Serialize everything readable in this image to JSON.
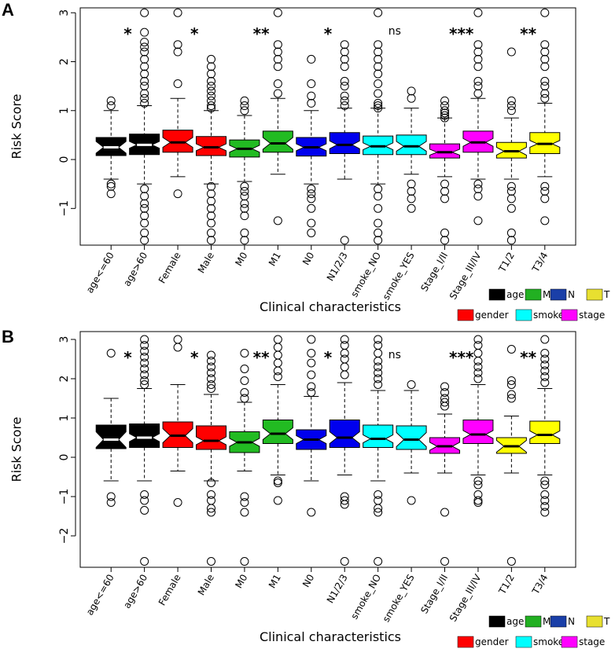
{
  "panel_labels": [
    "A",
    "B"
  ],
  "chart_data": [
    {
      "type": "boxplot",
      "panel": "A",
      "title": "",
      "xlabel": "Clinical characteristics",
      "ylabel": "Risk Score",
      "ylim": [
        -1.75,
        3.1
      ],
      "yticks": [
        -1,
        0,
        1,
        2,
        3
      ],
      "ytick_labels": [
        "−1",
        "0",
        "1",
        "2",
        "3"
      ],
      "notched": true,
      "categories": [
        "age<=60",
        "age>60",
        "Female",
        "Male",
        "M0",
        "M1",
        "N0",
        "N1/2/3",
        "smoke_NO",
        "smoke_YES",
        "Stage_I/II",
        "Stage_III/IV",
        "T1/2",
        "T3/4"
      ],
      "groups": [
        "age",
        "age",
        "gender",
        "gender",
        "M",
        "M",
        "N",
        "N",
        "smoke",
        "smoke",
        "stage",
        "stage",
        "T",
        "T"
      ],
      "boxes": [
        {
          "q1": 0.08,
          "median": 0.25,
          "q3": 0.45,
          "wlo": -0.4,
          "whi": 1.0,
          "notch": 0.12,
          "outliers": [
            1.2,
            1.1,
            -0.5,
            -0.55,
            -0.7
          ]
        },
        {
          "q1": 0.1,
          "median": 0.3,
          "q3": 0.52,
          "wlo": -0.5,
          "whi": 1.1,
          "notch": 0.07,
          "outliers": [
            3.0,
            2.6,
            2.4,
            2.3,
            2.2,
            2.05,
            1.9,
            1.75,
            1.6,
            1.5,
            1.35,
            1.25,
            1.15,
            -0.6,
            -0.75,
            -0.9,
            -1.0,
            -1.15,
            -1.3,
            -1.5,
            -1.65
          ]
        },
        {
          "q1": 0.15,
          "median": 0.35,
          "q3": 0.6,
          "wlo": -0.35,
          "whi": 1.25,
          "notch": 0.1,
          "outliers": [
            3.0,
            2.35,
            2.2,
            1.55,
            -0.7
          ]
        },
        {
          "q1": 0.08,
          "median": 0.25,
          "q3": 0.47,
          "wlo": -0.5,
          "whi": 1.0,
          "notch": 0.07,
          "outliers": [
            2.05,
            1.9,
            1.75,
            1.6,
            1.5,
            1.4,
            1.3,
            1.2,
            1.1,
            1.05,
            -0.55,
            -0.7,
            -0.85,
            -1.0,
            -1.15,
            -1.3,
            -1.5,
            -1.65
          ]
        },
        {
          "q1": 0.05,
          "median": 0.22,
          "q3": 0.4,
          "wlo": -0.45,
          "whi": 0.9,
          "notch": 0.07,
          "outliers": [
            1.2,
            1.1,
            1.0,
            -0.55,
            -0.65,
            -0.75,
            -0.9,
            -1.0,
            -1.15,
            -1.5,
            -1.65
          ]
        },
        {
          "q1": 0.15,
          "median": 0.33,
          "q3": 0.58,
          "wlo": -0.3,
          "whi": 1.25,
          "notch": 0.12,
          "outliers": [
            3.0,
            2.35,
            2.2,
            2.05,
            1.9,
            1.55,
            1.35,
            -1.25
          ]
        },
        {
          "q1": 0.07,
          "median": 0.25,
          "q3": 0.45,
          "wlo": -0.5,
          "whi": 1.0,
          "notch": 0.07,
          "outliers": [
            2.05,
            1.55,
            1.3,
            1.15,
            -0.6,
            -0.7,
            -0.8,
            -1.0,
            -1.3,
            -1.5
          ]
        },
        {
          "q1": 0.12,
          "median": 0.3,
          "q3": 0.55,
          "wlo": -0.4,
          "whi": 1.05,
          "notch": 0.08,
          "outliers": [
            2.35,
            2.2,
            2.05,
            1.9,
            1.6,
            1.5,
            1.3,
            1.2,
            1.1,
            -1.65
          ]
        },
        {
          "q1": 0.1,
          "median": 0.27,
          "q3": 0.48,
          "wlo": -0.5,
          "whi": 1.05,
          "notch": 0.07,
          "outliers": [
            3.0,
            2.35,
            2.2,
            2.05,
            1.9,
            1.75,
            1.55,
            1.35,
            1.15,
            1.1,
            1.05,
            -0.6,
            -0.75,
            -1.0,
            -1.3,
            -1.5,
            -1.65
          ]
        },
        {
          "q1": 0.1,
          "median": 0.27,
          "q3": 0.5,
          "wlo": -0.3,
          "whi": 1.05,
          "notch": 0.1,
          "outliers": [
            1.4,
            1.25,
            -0.5,
            -0.65,
            -0.8,
            -1.0
          ]
        },
        {
          "q1": 0.03,
          "median": 0.15,
          "q3": 0.32,
          "wlo": -0.35,
          "whi": 0.85,
          "notch": 0.06,
          "outliers": [
            1.2,
            1.1,
            1.0,
            0.95,
            0.9,
            0.85,
            -0.5,
            -0.65,
            -0.8,
            -1.5,
            -1.65
          ]
        },
        {
          "q1": 0.15,
          "median": 0.35,
          "q3": 0.58,
          "wlo": -0.4,
          "whi": 1.25,
          "notch": 0.08,
          "outliers": [
            3.0,
            2.35,
            2.2,
            2.05,
            1.9,
            1.6,
            1.5,
            1.35,
            -0.5,
            -0.6,
            -0.75,
            -1.25
          ]
        },
        {
          "q1": 0.03,
          "median": 0.17,
          "q3": 0.35,
          "wlo": -0.4,
          "whi": 0.85,
          "notch": 0.08,
          "outliers": [
            2.2,
            1.2,
            1.1,
            1.0,
            -0.55,
            -0.65,
            -0.8,
            -1.0,
            -1.5,
            -1.65
          ]
        },
        {
          "q1": 0.12,
          "median": 0.32,
          "q3": 0.55,
          "wlo": -0.35,
          "whi": 1.15,
          "notch": 0.07,
          "outliers": [
            3.0,
            2.35,
            2.2,
            2.05,
            1.9,
            1.6,
            1.5,
            1.35,
            1.25,
            -0.55,
            -0.65,
            -0.8,
            -1.25
          ]
        }
      ],
      "significance": [
        {
          "label": "*",
          "between": [
            0,
            1
          ]
        },
        {
          "label": "*",
          "between": [
            2,
            3
          ]
        },
        {
          "label": "**",
          "between": [
            4,
            5
          ]
        },
        {
          "label": "*",
          "between": [
            6,
            7
          ]
        },
        {
          "label": "ns",
          "between": [
            8,
            9
          ]
        },
        {
          "label": "***",
          "between": [
            10,
            11
          ]
        },
        {
          "label": "**",
          "between": [
            12,
            13
          ]
        }
      ]
    },
    {
      "type": "boxplot",
      "panel": "B",
      "title": "",
      "xlabel": "Clinical characteristics",
      "ylabel": "Risk Score",
      "ylim": [
        -2.8,
        3.2
      ],
      "yticks": [
        -2,
        -1,
        0,
        1,
        2,
        3
      ],
      "ytick_labels": [
        "−2",
        "−1",
        "0",
        "1",
        "2",
        "3"
      ],
      "notched": true,
      "categories": [
        "age<=60",
        "age>60",
        "Female",
        "Male",
        "M0",
        "M1",
        "N0",
        "N1/2/3",
        "smoke_NO",
        "smoke_YES",
        "Stage_I/II",
        "Stage_III/IV",
        "T1/2",
        "T3/4"
      ],
      "groups": [
        "age",
        "age",
        "gender",
        "gender",
        "M",
        "M",
        "N",
        "N",
        "smoke",
        "smoke",
        "stage",
        "stage",
        "T",
        "T"
      ],
      "boxes": [
        {
          "q1": 0.22,
          "median": 0.45,
          "q3": 0.82,
          "wlo": -0.6,
          "whi": 1.5,
          "notch": 0.2,
          "outliers": [
            2.65,
            -1.0,
            -1.15
          ]
        },
        {
          "q1": 0.25,
          "median": 0.5,
          "q3": 0.85,
          "wlo": -0.6,
          "whi": 1.75,
          "notch": 0.1,
          "outliers": [
            3.0,
            2.85,
            2.7,
            2.55,
            2.4,
            2.25,
            2.1,
            1.95,
            1.85,
            -0.95,
            -1.1,
            -1.35,
            -2.65
          ]
        },
        {
          "q1": 0.25,
          "median": 0.55,
          "q3": 0.9,
          "wlo": -0.35,
          "whi": 1.85,
          "notch": 0.18,
          "outliers": [
            3.0,
            2.8,
            -1.15
          ]
        },
        {
          "q1": 0.2,
          "median": 0.42,
          "q3": 0.8,
          "wlo": -0.6,
          "whi": 1.6,
          "notch": 0.1,
          "outliers": [
            2.6,
            2.45,
            2.3,
            2.15,
            2.0,
            1.85,
            1.75,
            -0.65,
            -0.95,
            -1.1,
            -1.3,
            -1.4,
            -2.65
          ]
        },
        {
          "q1": 0.12,
          "median": 0.38,
          "q3": 0.65,
          "wlo": -0.35,
          "whi": 1.4,
          "notch": 0.1,
          "outliers": [
            2.65,
            2.25,
            1.95,
            1.65,
            1.5,
            -1.0,
            -1.15,
            -1.4,
            -2.65
          ]
        },
        {
          "q1": 0.35,
          "median": 0.6,
          "q3": 0.95,
          "wlo": -0.45,
          "whi": 1.85,
          "notch": 0.15,
          "outliers": [
            3.0,
            2.8,
            2.6,
            2.4,
            2.2,
            2.05,
            -0.6,
            -0.65,
            -1.1
          ]
        },
        {
          "q1": 0.2,
          "median": 0.45,
          "q3": 0.7,
          "wlo": -0.6,
          "whi": 1.55,
          "notch": 0.1,
          "outliers": [
            3.0,
            2.65,
            2.4,
            2.1,
            1.8,
            1.65,
            -1.4
          ]
        },
        {
          "q1": 0.25,
          "median": 0.5,
          "q3": 0.95,
          "wlo": -0.45,
          "whi": 1.9,
          "notch": 0.15,
          "outliers": [
            3.0,
            2.85,
            2.65,
            2.5,
            2.3,
            2.1,
            -1.0,
            -1.1,
            -1.2,
            -2.65
          ]
        },
        {
          "q1": 0.25,
          "median": 0.47,
          "q3": 0.82,
          "wlo": -0.6,
          "whi": 1.7,
          "notch": 0.1,
          "outliers": [
            3.0,
            2.85,
            2.65,
            2.45,
            2.3,
            2.15,
            2.0,
            1.85,
            -0.95,
            -1.1,
            -1.3,
            -1.4,
            -2.65
          ]
        },
        {
          "q1": 0.2,
          "median": 0.45,
          "q3": 0.8,
          "wlo": -0.4,
          "whi": 1.7,
          "notch": 0.18,
          "outliers": [
            1.85,
            -1.1
          ]
        },
        {
          "q1": 0.1,
          "median": 0.28,
          "q3": 0.5,
          "wlo": -0.4,
          "whi": 1.1,
          "notch": 0.1,
          "outliers": [
            1.8,
            1.65,
            1.5,
            1.4,
            1.3,
            -1.4,
            -2.65
          ]
        },
        {
          "q1": 0.35,
          "median": 0.58,
          "q3": 0.95,
          "wlo": -0.45,
          "whi": 1.85,
          "notch": 0.1,
          "outliers": [
            3.0,
            2.85,
            2.65,
            2.45,
            2.3,
            2.15,
            2.0,
            -0.6,
            -0.7,
            -0.95,
            -1.1,
            -1.15
          ]
        },
        {
          "q1": 0.1,
          "median": 0.28,
          "q3": 0.5,
          "wlo": -0.4,
          "whi": 1.05,
          "notch": 0.15,
          "outliers": [
            2.75,
            1.95,
            1.85,
            1.6,
            1.5,
            -2.65
          ]
        },
        {
          "q1": 0.35,
          "median": 0.57,
          "q3": 0.92,
          "wlo": -0.45,
          "whi": 1.75,
          "notch": 0.1,
          "outliers": [
            3.0,
            2.65,
            2.5,
            2.35,
            2.2,
            2.05,
            1.9,
            -0.6,
            -0.7,
            -0.95,
            -1.1,
            -1.25,
            -1.4
          ]
        }
      ],
      "significance": [
        {
          "label": "*",
          "between": [
            0,
            1
          ]
        },
        {
          "label": "*",
          "between": [
            2,
            3
          ]
        },
        {
          "label": "**",
          "between": [
            4,
            5
          ]
        },
        {
          "label": "*",
          "between": [
            6,
            7
          ]
        },
        {
          "label": "ns",
          "between": [
            8,
            9
          ]
        },
        {
          "label": "***",
          "between": [
            10,
            11
          ]
        },
        {
          "label": "**",
          "between": [
            12,
            13
          ]
        }
      ]
    }
  ],
  "legend": {
    "items": [
      {
        "label": "age",
        "color": "#000000"
      },
      {
        "label": "M",
        "color": "#22b022"
      },
      {
        "label": "N",
        "color": "#1a3fa8"
      },
      {
        "label": "T",
        "color": "#e8e030"
      },
      {
        "label": "gender",
        "color": "#ff0000"
      },
      {
        "label": "smoke",
        "color": "#00ffff"
      },
      {
        "label": "stage",
        "color": "#ff00ff"
      }
    ]
  },
  "group_colors": {
    "age": "#000000",
    "gender": "#ff0000",
    "M": "#22bb22",
    "N": "#0000ee",
    "smoke": "#00ffff",
    "stage": "#ff00ff",
    "T": "#ffff00"
  },
  "median_colors": {
    "age": "#ffffff",
    "gender": "#000000",
    "M": "#000000",
    "N": "#000000",
    "smoke": "#000000",
    "stage": "#000000",
    "T": "#000000"
  }
}
